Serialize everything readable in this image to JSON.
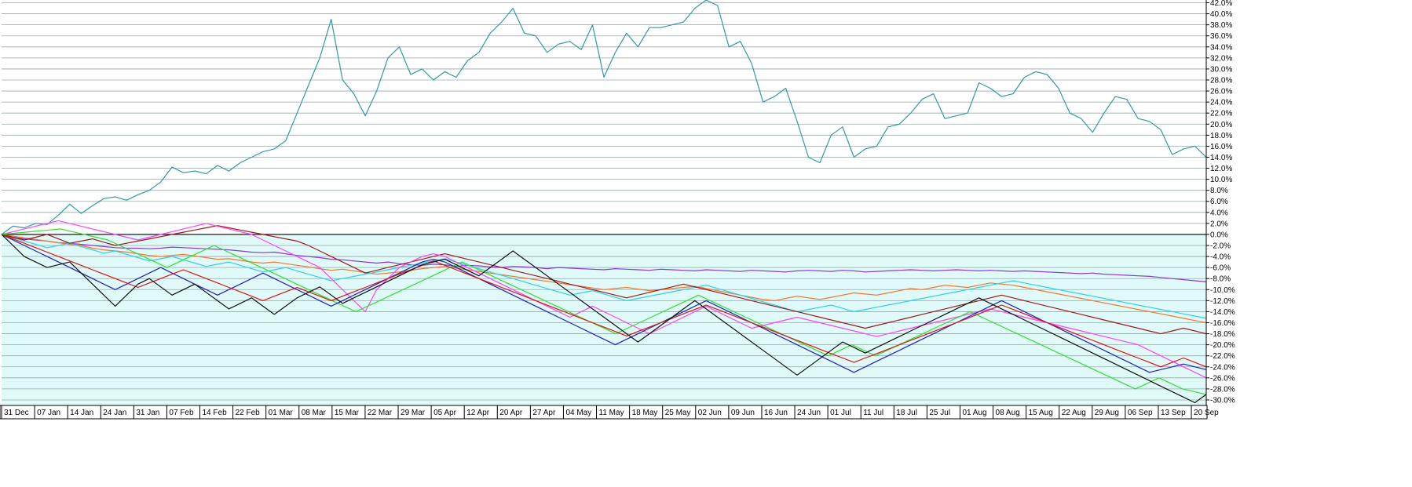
{
  "chart_data": {
    "type": "line",
    "y_tick_labels": [
      "42.0%",
      "40.0%",
      "38.0%",
      "36.0%",
      "34.0%",
      "32.0%",
      "30.0%",
      "28.0%",
      "26.0%",
      "24.0%",
      "22.0%",
      "20.0%",
      "18.0%",
      "16.0%",
      "14.0%",
      "12.0%",
      "10.0%",
      "8.0%",
      "6.0%",
      "4.0%",
      "2.0%",
      "0.0%",
      "-2.0%",
      "-4.0%",
      "-6.0%",
      "-8.0%",
      "-10.0%",
      "-12.0%",
      "-14.0%",
      "-16.0%",
      "-18.0%",
      "-20.0%",
      "-22.0%",
      "-24.0%",
      "-26.0%",
      "-28.0%",
      "-30.0%"
    ],
    "x_tick_labels": [
      "31 Dec",
      "07 Jan",
      "14 Jan",
      "24 Jan",
      "31 Jan",
      "07 Feb",
      "14 Feb",
      "22 Feb",
      "01 Mar",
      "08 Mar",
      "15 Mar",
      "22 Mar",
      "29 Mar",
      "05 Apr",
      "12 Apr",
      "20 Apr",
      "27 Apr",
      "04 May",
      "11 May",
      "18 May",
      "25 May",
      "02 Jun",
      "09 Jun",
      "16 Jun",
      "24 Jun",
      "01 Jul",
      "11 Jul",
      "18 Jul",
      "25 Jul",
      "01 Aug",
      "08 Aug",
      "15 Aug",
      "22 Aug",
      "29 Aug",
      "06 Sep",
      "13 Sep",
      "20 Sep"
    ],
    "ylim": [
      -31,
      42.5
    ],
    "grid": true,
    "zero_line": true,
    "legend": "none",
    "colors": {
      "positive_bg": "#ffffff",
      "negative_bg": "#e0fafa",
      "grid": "#9aa6a6",
      "zero": "#000000"
    },
    "series": [
      {
        "color": "#2f9aa6",
        "values": [
          0.0,
          1.5,
          1.2,
          2.0,
          1.8,
          3.5,
          5.5,
          3.8,
          5.2,
          6.5,
          6.8,
          6.2,
          7.2,
          8.0,
          9.5,
          12.2,
          11.2,
          11.5,
          11.0,
          12.5,
          11.5,
          13.0,
          14.0,
          15.0,
          15.5,
          17.0,
          22.0,
          27.0,
          32.0,
          39.0,
          28.0,
          25.5,
          21.5,
          26.0,
          32.0,
          34.0,
          29.0,
          30.0,
          28.0,
          29.5,
          28.5,
          31.5,
          33.0,
          36.5,
          38.5,
          41.0,
          36.5,
          36.0,
          33.0,
          34.5,
          35.0,
          33.5,
          38.0,
          28.5,
          33.0,
          36.5,
          34.0,
          37.5,
          37.5,
          38.0,
          38.5,
          41.0,
          42.5,
          41.5,
          34.0,
          35.0,
          31.0,
          24.0,
          25.0,
          26.5,
          20.5,
          14.0,
          13.0,
          18.0,
          19.5,
          14.0,
          15.5,
          16.0,
          19.5,
          20.0,
          22.0,
          24.5,
          25.5,
          21.0,
          21.5,
          22.0,
          27.5,
          26.5,
          25.0,
          25.5,
          28.5,
          29.5,
          29.0,
          26.5,
          22.0,
          21.0,
          18.5,
          22.0,
          25.0,
          24.5,
          21.0,
          20.5,
          19.0,
          14.5,
          15.5,
          16.0,
          14.0
        ]
      },
      {
        "color": "#8a3ad0",
        "values": [
          0.0,
          -0.5,
          -0.8,
          -1.0,
          -1.2,
          -1.5,
          -1.6,
          -1.8,
          -2.0,
          -2.2,
          -2.4,
          -2.5,
          -2.5,
          -2.6,
          -2.5,
          -2.3,
          -2.4,
          -2.5,
          -2.6,
          -2.7,
          -2.8,
          -3.0,
          -3.2,
          -3.3,
          -3.2,
          -3.5,
          -3.8,
          -4.0,
          -4.2,
          -4.5,
          -4.6,
          -4.8,
          -5.0,
          -5.2,
          -5.0,
          -5.3,
          -5.5,
          -5.6,
          -5.4,
          -5.5,
          -5.8,
          -5.6,
          -5.7,
          -5.9,
          -6.0,
          -5.8,
          -5.9,
          -6.0,
          -6.2,
          -6.0,
          -6.1,
          -6.2,
          -6.3,
          -6.4,
          -6.2,
          -6.3,
          -6.4,
          -6.5,
          -6.3,
          -6.4,
          -6.5,
          -6.6,
          -6.4,
          -6.5,
          -6.6,
          -6.7,
          -6.5,
          -6.6,
          -6.7,
          -6.8,
          -6.6,
          -6.5,
          -6.6,
          -6.7,
          -6.5,
          -6.6,
          -6.8,
          -6.7,
          -6.6,
          -6.5,
          -6.4,
          -6.5,
          -6.6,
          -6.5,
          -6.4,
          -6.5,
          -6.6,
          -6.5,
          -6.6,
          -6.7,
          -6.6,
          -6.7,
          -6.8,
          -6.9,
          -7.0,
          -7.1,
          -7.0,
          -7.2,
          -7.3,
          -7.4,
          -7.5,
          -7.6,
          -7.8,
          -8.0,
          -8.2,
          -8.4,
          -8.6
        ]
      },
      {
        "color": "#f07830",
        "values": [
          0.0,
          -0.3,
          -0.6,
          -0.9,
          -1.2,
          -1.5,
          -1.8,
          -2.0,
          -2.5,
          -2.8,
          -3.0,
          -3.2,
          -3.5,
          -3.8,
          -4.0,
          -3.8,
          -3.6,
          -3.9,
          -4.2,
          -4.5,
          -4.4,
          -4.7,
          -5.0,
          -5.2,
          -5.0,
          -5.3,
          -5.6,
          -5.9,
          -6.2,
          -6.5,
          -6.3,
          -6.6,
          -6.9,
          -7.2,
          -7.0,
          -6.8,
          -6.5,
          -6.2,
          -6.0,
          -5.8,
          -6.1,
          -6.4,
          -6.7,
          -7.0,
          -7.3,
          -7.6,
          -7.9,
          -8.2,
          -8.5,
          -8.8,
          -9.1,
          -9.4,
          -9.7,
          -10.0,
          -9.8,
          -9.6,
          -9.9,
          -10.2,
          -10.0,
          -9.8,
          -9.6,
          -9.4,
          -9.8,
          -10.2,
          -10.6,
          -11.0,
          -11.4,
          -11.8,
          -12.0,
          -11.6,
          -11.2,
          -11.5,
          -11.8,
          -11.4,
          -11.0,
          -10.6,
          -10.8,
          -11.0,
          -10.6,
          -10.2,
          -9.8,
          -10.0,
          -9.6,
          -9.2,
          -9.4,
          -9.6,
          -9.2,
          -8.8,
          -9.0,
          -9.2,
          -9.6,
          -10.0,
          -10.4,
          -10.8,
          -11.2,
          -11.6,
          -12.0,
          -12.4,
          -12.8,
          -13.2,
          -13.6,
          -14.0,
          -14.4,
          -14.8,
          -15.2,
          -15.6,
          -16.0
        ]
      },
      {
        "color": "#30d0e0",
        "values": [
          0.0,
          -0.6,
          -1.2,
          -1.8,
          -2.4,
          -2.0,
          -1.6,
          -2.2,
          -2.8,
          -3.4,
          -3.0,
          -3.6,
          -4.2,
          -4.8,
          -4.4,
          -4.0,
          -4.6,
          -5.2,
          -5.8,
          -5.4,
          -5.0,
          -5.6,
          -6.2,
          -6.8,
          -6.4,
          -6.0,
          -6.6,
          -7.2,
          -7.8,
          -8.4,
          -8.0,
          -7.6,
          -7.2,
          -6.8,
          -6.4,
          -6.0,
          -5.6,
          -5.2,
          -4.8,
          -4.4,
          -5.0,
          -5.6,
          -6.2,
          -6.8,
          -7.4,
          -8.0,
          -8.6,
          -9.2,
          -9.8,
          -10.4,
          -11.0,
          -10.6,
          -10.2,
          -10.8,
          -11.4,
          -12.0,
          -11.6,
          -11.2,
          -10.8,
          -10.4,
          -10.0,
          -9.6,
          -9.2,
          -9.8,
          -10.4,
          -11.0,
          -11.6,
          -12.2,
          -12.8,
          -13.4,
          -14.0,
          -13.6,
          -13.2,
          -12.8,
          -13.4,
          -14.0,
          -13.6,
          -13.2,
          -12.8,
          -12.4,
          -12.0,
          -11.6,
          -11.2,
          -10.8,
          -10.4,
          -10.0,
          -9.6,
          -9.2,
          -8.8,
          -8.4,
          -8.8,
          -9.2,
          -9.6,
          -10.0,
          -10.4,
          -10.8,
          -11.2,
          -11.6,
          -12.0,
          -12.4,
          -12.8,
          -13.2,
          -13.6,
          -14.0,
          -14.4,
          -14.8,
          -15.2
        ]
      },
      {
        "color": "#a01818",
        "values": [
          0.0,
          -0.5,
          -1.0,
          -0.5,
          0.0,
          -0.8,
          -1.6,
          -1.2,
          -0.8,
          -1.4,
          -2.0,
          -1.6,
          -1.2,
          -0.8,
          -0.4,
          0.0,
          0.4,
          0.8,
          1.2,
          1.6,
          1.2,
          0.8,
          0.4,
          0.0,
          -0.4,
          -0.8,
          -1.2,
          -2.0,
          -3.0,
          -4.0,
          -5.0,
          -6.0,
          -7.0,
          -6.5,
          -6.0,
          -5.5,
          -5.0,
          -4.5,
          -4.0,
          -3.5,
          -4.0,
          -4.5,
          -5.0,
          -5.5,
          -6.0,
          -6.5,
          -7.0,
          -7.5,
          -8.0,
          -8.5,
          -9.0,
          -9.5,
          -10.0,
          -10.5,
          -11.0,
          -11.5,
          -11.0,
          -10.5,
          -10.0,
          -9.5,
          -9.0,
          -9.5,
          -10.0,
          -10.5,
          -11.0,
          -11.5,
          -12.0,
          -12.5,
          -13.0,
          -13.5,
          -14.0,
          -14.5,
          -15.0,
          -15.5,
          -16.0,
          -16.5,
          -17.0,
          -16.5,
          -16.0,
          -15.5,
          -15.0,
          -14.5,
          -14.0,
          -13.5,
          -13.0,
          -12.5,
          -12.0,
          -11.5,
          -11.0,
          -11.5,
          -12.0,
          -12.5,
          -13.0,
          -13.5,
          -14.0,
          -14.5,
          -15.0,
          -15.5,
          -16.0,
          -16.5,
          -17.0,
          -17.5,
          -18.0,
          -17.5,
          -17.0,
          -17.5,
          -18.0
        ]
      },
      {
        "color": "#ff40ff",
        "values": [
          0.0,
          0.5,
          1.0,
          1.5,
          2.0,
          2.5,
          2.0,
          1.5,
          1.0,
          0.5,
          0.0,
          -0.5,
          -1.0,
          -0.5,
          0.0,
          0.5,
          1.0,
          1.5,
          2.0,
          1.5,
          1.0,
          0.5,
          0.0,
          -1.0,
          -2.0,
          -3.0,
          -4.0,
          -5.0,
          -6.0,
          -8.0,
          -10.0,
          -12.0,
          -14.0,
          -10.0,
          -8.0,
          -6.0,
          -5.0,
          -4.0,
          -3.5,
          -4.0,
          -5.0,
          -6.0,
          -7.0,
          -8.0,
          -9.0,
          -10.0,
          -11.0,
          -12.0,
          -13.0,
          -14.0,
          -15.0,
          -14.0,
          -13.0,
          -14.0,
          -15.0,
          -16.0,
          -17.0,
          -18.0,
          -17.0,
          -16.0,
          -15.0,
          -14.0,
          -13.0,
          -14.0,
          -15.0,
          -16.0,
          -17.0,
          -16.5,
          -16.0,
          -15.5,
          -15.0,
          -15.5,
          -16.0,
          -16.5,
          -17.0,
          -17.5,
          -18.0,
          -18.5,
          -18.0,
          -17.5,
          -17.0,
          -16.5,
          -16.0,
          -15.5,
          -15.0,
          -14.5,
          -14.0,
          -13.5,
          -14.0,
          -14.5,
          -15.0,
          -15.5,
          -16.0,
          -16.5,
          -17.0,
          -17.5,
          -18.0,
          -18.5,
          -19.0,
          -19.5,
          -20.0,
          -21.0,
          -22.0,
          -23.0,
          -24.0,
          -25.0,
          -26.0
        ]
      },
      {
        "color": "#30e030",
        "values": [
          0.0,
          0.2,
          0.4,
          0.6,
          0.8,
          1.0,
          0.5,
          0.0,
          -0.5,
          -1.0,
          -2.0,
          -3.0,
          -4.0,
          -5.0,
          -6.0,
          -5.0,
          -4.0,
          -3.0,
          -2.0,
          -3.0,
          -4.0,
          -5.0,
          -6.0,
          -7.0,
          -8.0,
          -9.0,
          -10.0,
          -11.0,
          -12.0,
          -13.0,
          -14.0,
          -13.0,
          -12.0,
          -11.0,
          -10.0,
          -9.0,
          -8.0,
          -7.0,
          -6.0,
          -5.0,
          -6.0,
          -7.0,
          -8.0,
          -9.0,
          -10.0,
          -11.0,
          -12.0,
          -13.0,
          -14.0,
          -15.0,
          -16.0,
          -17.0,
          -18.0,
          -17.0,
          -16.0,
          -15.0,
          -14.0,
          -13.0,
          -12.0,
          -11.0,
          -12.0,
          -13.0,
          -14.0,
          -15.0,
          -16.0,
          -17.0,
          -18.0,
          -19.0,
          -20.0,
          -21.0,
          -22.0,
          -21.0,
          -20.0,
          -21.0,
          -22.0,
          -21.0,
          -20.0,
          -19.0,
          -18.0,
          -17.0,
          -16.0,
          -15.0,
          -14.0,
          -15.0,
          -16.0,
          -17.0,
          -18.0,
          -19.0,
          -20.0,
          -21.0,
          -22.0,
          -23.0,
          -24.0,
          -25.0,
          -26.0,
          -27.0,
          -28.0,
          -27.0,
          -26.0,
          -27.0,
          -28.0,
          -28.5,
          -29.0
        ]
      },
      {
        "color": "#2020c0",
        "values": [
          0.0,
          -1.0,
          -2.0,
          -3.0,
          -4.0,
          -5.0,
          -6.0,
          -7.0,
          -8.0,
          -9.0,
          -10.0,
          -9.0,
          -8.0,
          -7.0,
          -6.0,
          -7.0,
          -8.0,
          -9.0,
          -10.0,
          -11.0,
          -10.0,
          -9.0,
          -8.0,
          -7.0,
          -8.0,
          -9.0,
          -10.0,
          -11.0,
          -12.0,
          -13.0,
          -12.0,
          -11.0,
          -10.0,
          -9.0,
          -8.0,
          -7.0,
          -6.0,
          -5.0,
          -4.5,
          -5.0,
          -6.0,
          -7.0,
          -8.0,
          -9.0,
          -10.0,
          -11.0,
          -12.0,
          -13.0,
          -14.0,
          -15.0,
          -16.0,
          -17.0,
          -18.0,
          -19.0,
          -20.0,
          -19.0,
          -18.0,
          -17.0,
          -16.0,
          -15.0,
          -14.0,
          -13.0,
          -12.0,
          -13.0,
          -14.0,
          -15.0,
          -16.0,
          -17.0,
          -18.0,
          -19.0,
          -20.0,
          -21.0,
          -22.0,
          -23.0,
          -24.0,
          -25.0,
          -24.0,
          -23.0,
          -22.0,
          -21.0,
          -20.0,
          -19.0,
          -18.0,
          -17.0,
          -16.0,
          -15.0,
          -14.0,
          -13.0,
          -12.0,
          -13.0,
          -14.0,
          -15.0,
          -16.0,
          -17.0,
          -18.0,
          -19.0,
          -20.0,
          -21.0,
          -22.0,
          -23.0,
          -24.0,
          -25.0,
          -24.5,
          -24.0,
          -23.5,
          -24.0,
          -24.5
        ]
      },
      {
        "color": "#e01010",
        "values": [
          0.0,
          -0.8,
          -1.6,
          -2.4,
          -3.2,
          -4.0,
          -4.8,
          -5.6,
          -6.4,
          -7.2,
          -8.0,
          -8.8,
          -9.6,
          -8.8,
          -8.0,
          -7.2,
          -6.4,
          -7.2,
          -8.0,
          -8.8,
          -9.6,
          -10.4,
          -11.2,
          -12.0,
          -11.2,
          -10.4,
          -9.6,
          -10.4,
          -11.2,
          -12.0,
          -11.2,
          -10.4,
          -9.6,
          -8.8,
          -8.0,
          -7.2,
          -6.4,
          -5.6,
          -4.8,
          -5.6,
          -6.4,
          -7.2,
          -8.0,
          -8.8,
          -9.6,
          -10.4,
          -11.2,
          -12.0,
          -12.8,
          -13.6,
          -14.4,
          -15.2,
          -16.0,
          -16.8,
          -17.6,
          -18.4,
          -17.6,
          -16.8,
          -16.0,
          -15.2,
          -14.4,
          -13.6,
          -12.8,
          -13.6,
          -14.4,
          -15.2,
          -16.0,
          -16.8,
          -17.6,
          -18.4,
          -19.2,
          -20.0,
          -20.8,
          -21.6,
          -22.4,
          -23.2,
          -22.4,
          -21.6,
          -20.8,
          -20.0,
          -19.2,
          -18.4,
          -17.6,
          -16.8,
          -16.0,
          -15.2,
          -14.4,
          -13.6,
          -12.8,
          -13.6,
          -14.4,
          -15.2,
          -16.0,
          -16.8,
          -17.6,
          -18.4,
          -19.2,
          -20.0,
          -20.8,
          -21.6,
          -22.4,
          -23.2,
          -24.0,
          -23.2,
          -22.4,
          -23.2,
          -24.0
        ]
      },
      {
        "color": "#101010",
        "values": [
          0.0,
          -2.0,
          -4.0,
          -5.0,
          -6.0,
          -5.5,
          -5.0,
          -7.0,
          -9.0,
          -11.0,
          -13.0,
          -11.0,
          -9.0,
          -8.0,
          -9.5,
          -11.0,
          -10.0,
          -9.0,
          -10.5,
          -12.0,
          -13.5,
          -12.5,
          -11.5,
          -13.0,
          -14.5,
          -13.0,
          -11.5,
          -10.5,
          -9.5,
          -11.0,
          -12.5,
          -11.5,
          -10.5,
          -9.5,
          -8.5,
          -7.5,
          -6.5,
          -5.5,
          -5.0,
          -4.5,
          -5.5,
          -6.5,
          -7.5,
          -6.0,
          -4.5,
          -3.0,
          -4.5,
          -6.0,
          -7.5,
          -9.0,
          -10.5,
          -12.0,
          -13.5,
          -15.0,
          -16.5,
          -18.0,
          -19.5,
          -18.0,
          -16.5,
          -15.0,
          -13.5,
          -12.0,
          -13.5,
          -15.0,
          -16.5,
          -18.0,
          -19.5,
          -21.0,
          -22.5,
          -24.0,
          -25.5,
          -24.0,
          -22.5,
          -21.0,
          -19.5,
          -20.5,
          -21.5,
          -20.5,
          -19.5,
          -18.5,
          -17.5,
          -16.5,
          -15.5,
          -14.5,
          -13.5,
          -12.5,
          -11.5,
          -12.5,
          -13.5,
          -14.5,
          -15.5,
          -16.5,
          -17.5,
          -18.5,
          -19.5,
          -20.5,
          -21.5,
          -22.5,
          -23.5,
          -24.5,
          -25.5,
          -26.5,
          -27.5,
          -28.5,
          -29.5,
          -30.5,
          -29.0
        ]
      }
    ]
  }
}
